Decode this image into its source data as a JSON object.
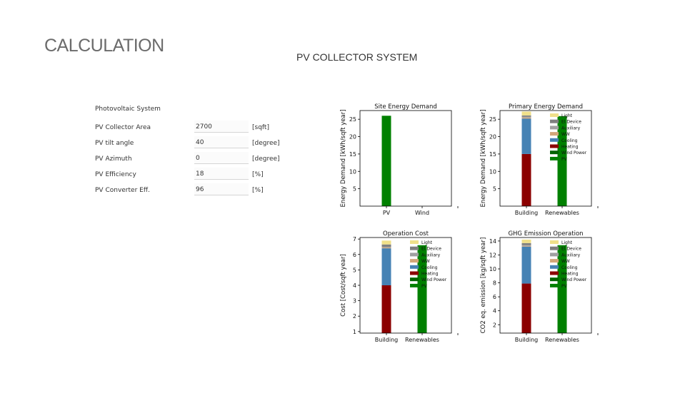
{
  "page": {
    "title": "CALCULATION",
    "section_title": "PV COLLECTOR SYSTEM"
  },
  "form": {
    "heading": "Photovoltaic System",
    "fields": [
      {
        "label": "PV Collector Area",
        "value": "2700",
        "unit": "[sqft]"
      },
      {
        "label": "PV tilt angle",
        "value": "40",
        "unit": "[degree]"
      },
      {
        "label": "PV Azimuth",
        "value": "0",
        "unit": "[degree]"
      },
      {
        "label": "PV Efficiency",
        "value": "18",
        "unit": "[%]"
      },
      {
        "label": "PV Converter Eff.",
        "value": "96",
        "unit": "[%]"
      }
    ]
  },
  "legend_items": [
    {
      "name": "Light",
      "color": "#f0e08a"
    },
    {
      "name": "El.Device",
      "color": "#7f7f7f"
    },
    {
      "name": "Auxiliary",
      "color": "#a0a0a0"
    },
    {
      "name": "WW",
      "color": "#d2a679"
    },
    {
      "name": "Cooling",
      "color": "#4682b4"
    },
    {
      "name": "Heating",
      "color": "#8b0000"
    },
    {
      "name": "Wind Power",
      "color": "#006400"
    },
    {
      "name": "PV",
      "color": "#008000"
    }
  ],
  "chart_data": [
    {
      "type": "bar",
      "title": "Site Energy Demand",
      "ylabel": "Energy Demand [kWh/sqft year]",
      "categories": [
        "PV",
        "Wind"
      ],
      "yticks": [
        5,
        10,
        15,
        20,
        25
      ],
      "ylim": [
        0,
        27.5
      ],
      "legend": false,
      "stacks": [
        {
          "category": "PV",
          "segments": [
            {
              "series": "PV",
              "value": 26
            }
          ]
        }
      ]
    },
    {
      "type": "bar",
      "title": "Primary Energy Demand",
      "ylabel": "Energy Demand [kWh/sqft year]",
      "categories": [
        "Building",
        "Renewables"
      ],
      "yticks": [
        5,
        10,
        15,
        20,
        25
      ],
      "ylim": [
        0,
        27.5
      ],
      "legend": true,
      "legend_placement": "top-right",
      "stacks": [
        {
          "category": "Building",
          "segments": [
            {
              "series": "Heating",
              "value": 15
            },
            {
              "series": "Cooling",
              "value": 10.2
            },
            {
              "series": "WW",
              "value": 0.3
            },
            {
              "series": "Auxiliary",
              "value": 0.2
            },
            {
              "series": "El.Device",
              "value": 0.4
            },
            {
              "series": "Light",
              "value": 1.1
            }
          ]
        },
        {
          "category": "Renewables",
          "segments": [
            {
              "series": "PV",
              "value": 25.9
            }
          ]
        }
      ]
    },
    {
      "type": "bar",
      "title": "Operation Cost",
      "ylabel": "Cost [Cost/sqft year]",
      "categories": [
        "Building",
        "Renewables"
      ],
      "yticks": [
        1,
        2,
        3,
        4,
        5,
        6,
        7
      ],
      "ylim": [
        0.9,
        7.1
      ],
      "legend": true,
      "legend_placement": "top-right",
      "stacks": [
        {
          "category": "Building",
          "segments": [
            {
              "series": "Heating",
              "value": 4.0
            },
            {
              "series": "Cooling",
              "value": 2.4
            },
            {
              "series": "WW",
              "value": 0.05
            },
            {
              "series": "Auxiliary",
              "value": 0.05
            },
            {
              "series": "El.Device",
              "value": 0.15
            },
            {
              "series": "Light",
              "value": 0.25
            }
          ]
        },
        {
          "category": "Renewables",
          "segments": [
            {
              "series": "PV",
              "value": 6.6
            }
          ]
        }
      ]
    },
    {
      "type": "bar",
      "title": "GHG Emission Operation",
      "ylabel": "CO2 eq. emission [kg/sqft year]",
      "categories": [
        "Building",
        "Renewables"
      ],
      "yticks": [
        2,
        4,
        6,
        8,
        10,
        12,
        14
      ],
      "ylim": [
        0.8,
        14.5
      ],
      "legend": true,
      "legend_placement": "top-right",
      "stacks": [
        {
          "category": "Building",
          "segments": [
            {
              "series": "Heating",
              "value": 7.9
            },
            {
              "series": "Cooling",
              "value": 5.3
            },
            {
              "series": "WW",
              "value": 0.1
            },
            {
              "series": "Auxiliary",
              "value": 0.1
            },
            {
              "series": "El.Device",
              "value": 0.3
            },
            {
              "series": "Light",
              "value": 0.5
            }
          ]
        },
        {
          "category": "Renewables",
          "segments": [
            {
              "series": "PV",
              "value": 13.4
            }
          ]
        }
      ]
    }
  ]
}
